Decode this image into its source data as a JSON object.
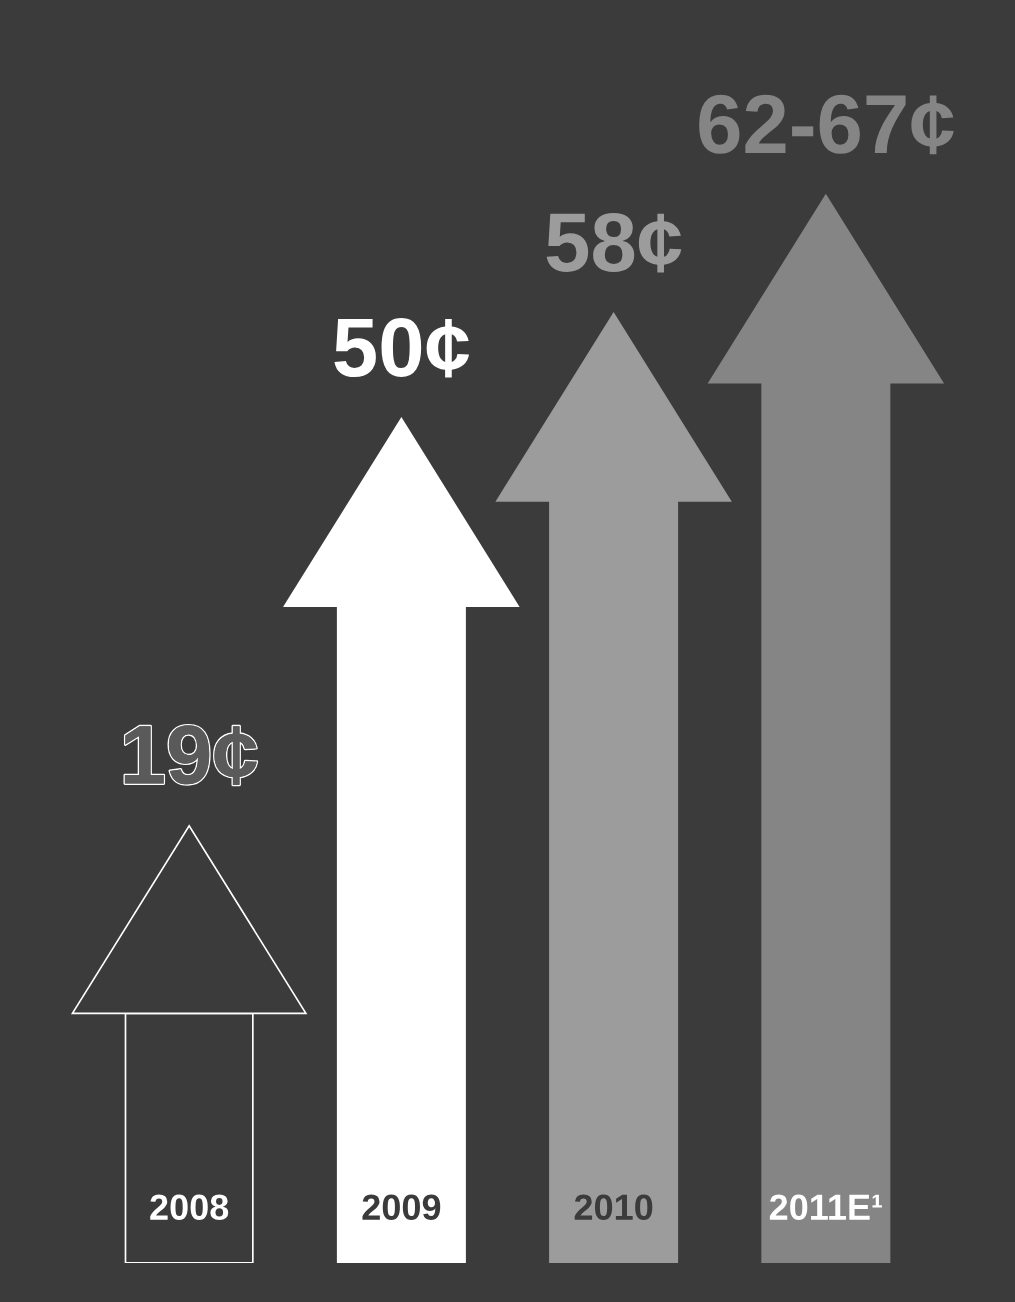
{
  "chart_data": {
    "type": "bar",
    "categories": [
      "2008",
      "2009",
      "2010",
      "2011E¹"
    ],
    "values": [
      19,
      50,
      58,
      67
    ],
    "value_labels": [
      "19¢",
      "50¢",
      "58¢",
      "62-67¢"
    ],
    "colors": [
      "#3b3b3b",
      "#ffffff",
      "#9c9c9c",
      "#858585"
    ]
  }
}
